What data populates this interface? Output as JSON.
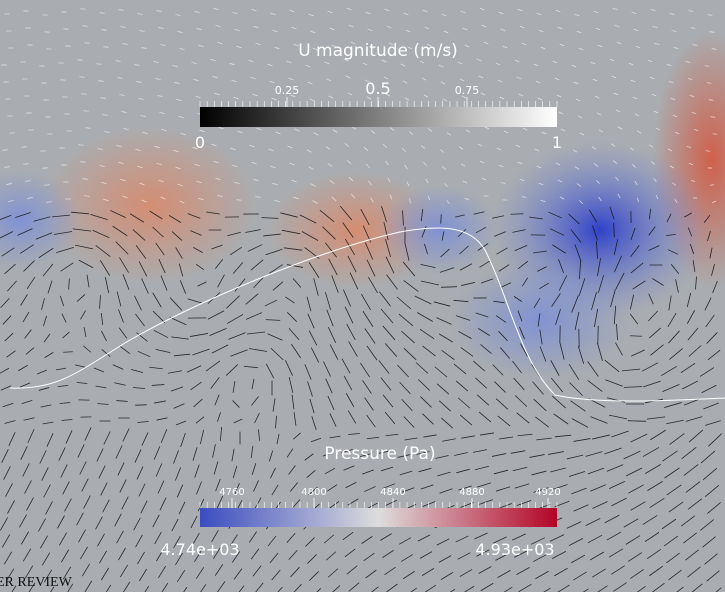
{
  "velocity_colorbar": {
    "title": "U magnitude (m/s)",
    "min_label": "0",
    "max_label": "1",
    "tick_labels": [
      "0.25",
      "0.5",
      "0.75"
    ]
  },
  "pressure_colorbar": {
    "title": "Pressure (Pa)",
    "min_label": "4.74e+03",
    "max_label": "4.93e+03",
    "tick_labels": [
      "4760",
      "4800",
      "4840",
      "4880",
      "4920"
    ]
  },
  "watermark": "ER REVIEW"
}
